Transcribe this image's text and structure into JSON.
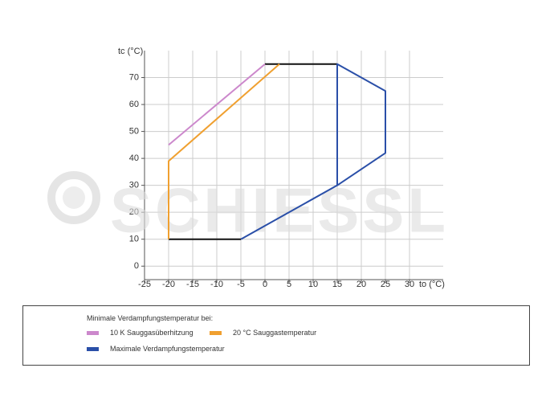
{
  "chart_data": {
    "type": "line",
    "y_label": "tc (°C)",
    "x_label": "to (°C)",
    "watermark": "SCHIESSL",
    "xlim": [
      -25,
      37
    ],
    "xticks": [
      -25,
      -20,
      -15,
      -10,
      -5,
      0,
      5,
      10,
      15,
      20,
      25,
      30
    ],
    "ylim": [
      -5,
      80
    ],
    "yticks": [
      0,
      10,
      20,
      30,
      40,
      50,
      60,
      70
    ],
    "grid": true,
    "legend_title": "Minimale Verdampfungstemperatur bei:",
    "series": [
      {
        "color": "#111111",
        "x": [
          -20,
          -5,
          null,
          0,
          15
        ],
        "values": [
          10,
          10,
          null,
          75,
          75
        ]
      },
      {
        "name": "10 K Sauggasüberhitzung",
        "color": "#cc88cc",
        "x": [
          -20,
          0
        ],
        "values": [
          45,
          75
        ]
      },
      {
        "name": "20 °C Sauggastemperatur",
        "color": "#f0a030",
        "x": [
          -20,
          -20,
          3
        ],
        "values": [
          10,
          39,
          75
        ]
      },
      {
        "name": "Maximale Verdampfungstemperatur",
        "color": "#2a4fa8",
        "x": [
          -5,
          15,
          25,
          25,
          15,
          15
        ],
        "values": [
          10,
          30,
          42,
          65,
          75,
          30
        ]
      }
    ]
  }
}
